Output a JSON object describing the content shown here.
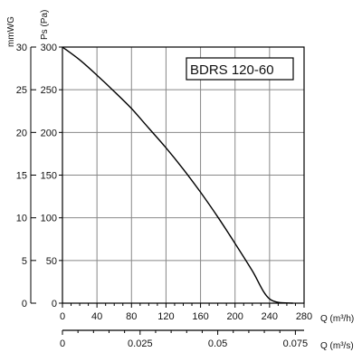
{
  "chart_data": {
    "type": "line",
    "title": "BDRS 120-60",
    "x_axis": {
      "label": "Q (m³/h)",
      "range": [
        0,
        280
      ],
      "ticks": [
        0,
        40,
        80,
        120,
        160,
        200,
        240,
        280
      ]
    },
    "x2_axis": {
      "label": "Q (m³/s)",
      "range": [
        0,
        0.0778
      ],
      "ticks": [
        {
          "value": 0,
          "label": "0"
        },
        {
          "value": 0.025,
          "label": "0.025"
        },
        {
          "value": 0.05,
          "label": "0.05"
        },
        {
          "value": 0.075,
          "label": "0.075"
        }
      ]
    },
    "y_axis": {
      "label": "Ps (Pa)",
      "range": [
        0,
        300
      ],
      "ticks": [
        0,
        50,
        100,
        150,
        200,
        250,
        300
      ]
    },
    "y2_axis": {
      "label": "mmWG",
      "range": [
        0,
        30
      ],
      "ticks": [
        0,
        5,
        10,
        15,
        20,
        25,
        30
      ]
    },
    "grid": true,
    "series": [
      {
        "x": [
          0,
          20,
          40,
          60,
          80,
          100,
          120,
          140,
          160,
          180,
          200,
          220,
          240,
          260,
          267
        ],
        "y": [
          300,
          285,
          267,
          248,
          228,
          205,
          182,
          157,
          130,
          101,
          70,
          38,
          5,
          -25,
          0
        ]
      }
    ]
  }
}
